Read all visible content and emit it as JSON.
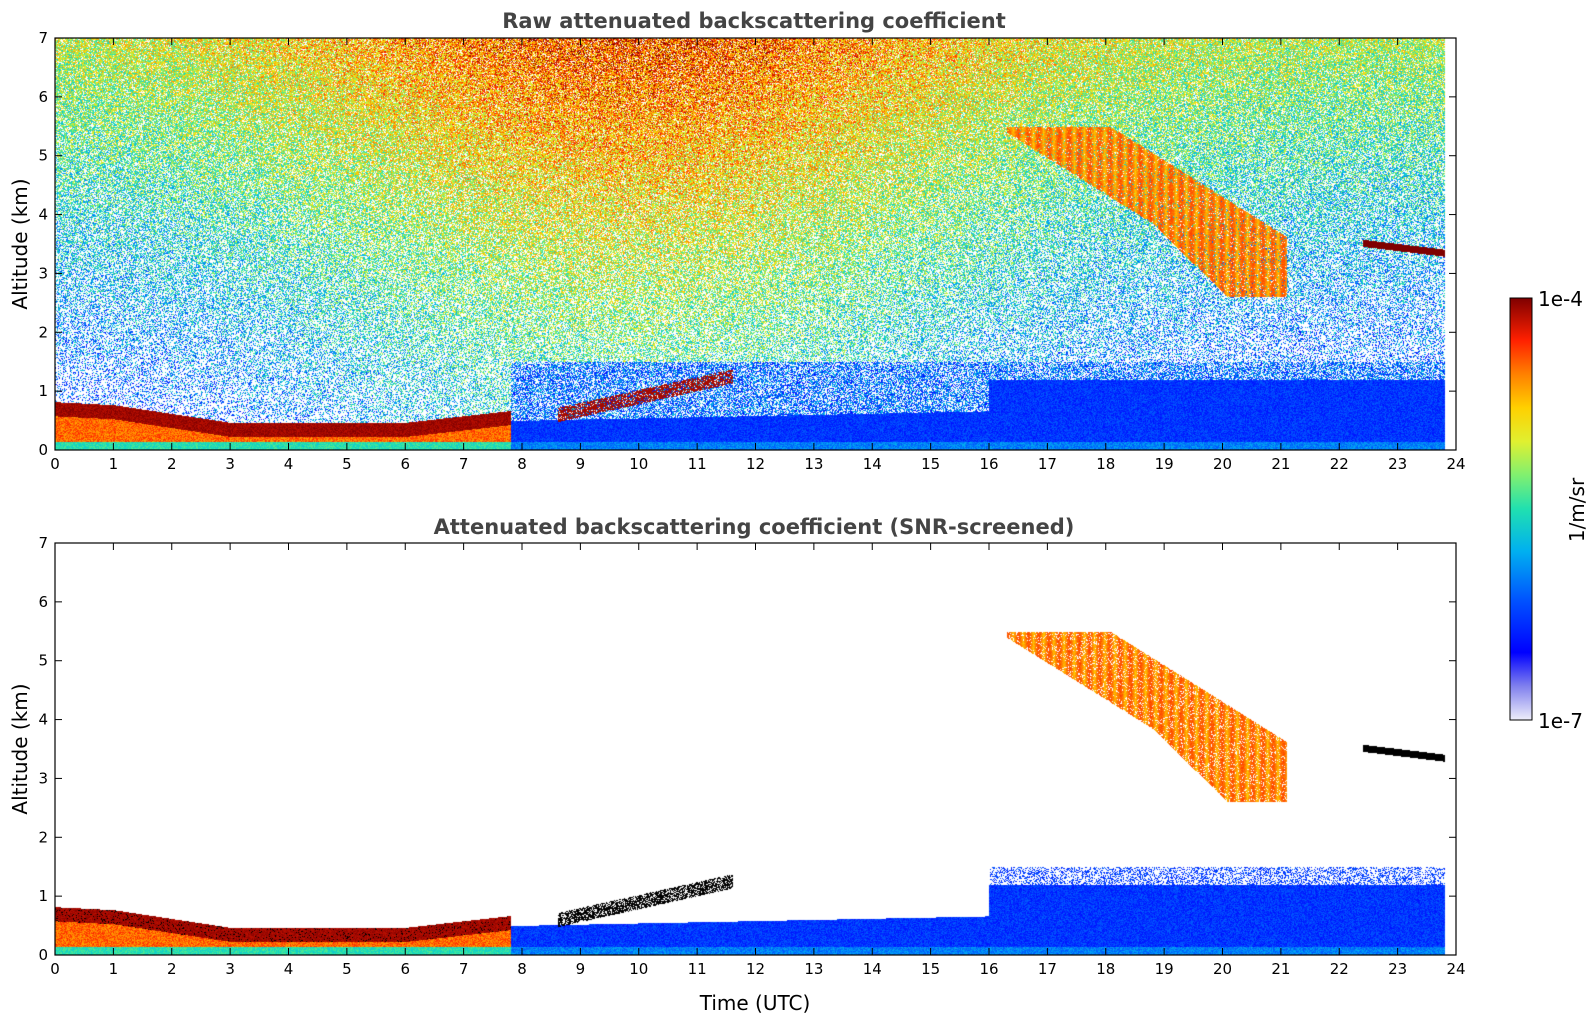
{
  "chart_data": [
    {
      "type": "heatmap",
      "title": "Raw attenuated backscattering coefficient",
      "xlabel": "",
      "ylabel": "Altitude (km)",
      "xlim": [
        0,
        24
      ],
      "ylim": [
        0,
        7
      ],
      "x_ticks": [
        "0",
        "1",
        "2",
        "3",
        "4",
        "5",
        "6",
        "7",
        "8",
        "9",
        "10",
        "11",
        "12",
        "13",
        "14",
        "15",
        "16",
        "17",
        "18",
        "19",
        "20",
        "21",
        "22",
        "23",
        "24"
      ],
      "y_ticks": [
        "0",
        "1",
        "2",
        "3",
        "4",
        "5",
        "6",
        "7"
      ],
      "data_end_time": 23.8,
      "features": [
        {
          "kind": "boundary_layer_aerosol",
          "time": [
            0,
            7.8
          ],
          "altitude_km": [
            0,
            0.7
          ],
          "level": "high"
        },
        {
          "kind": "low_cloud_broken",
          "time": [
            7.8,
            11.6
          ],
          "altitude_km": [
            0.5,
            1.4
          ],
          "level": "very_high"
        },
        {
          "kind": "mid_cloud",
          "time": [
            16.2,
            21.0
          ],
          "altitude_km": [
            2.6,
            5.4
          ],
          "level": "medium_high"
        },
        {
          "kind": "thin_cloud_layer",
          "time": [
            22.4,
            23.8
          ],
          "altitude_km": [
            3.3,
            3.6
          ],
          "level": "very_high"
        }
      ],
      "noise_level_high_altitude": "high"
    },
    {
      "type": "heatmap",
      "title": "Attenuated backscattering coefficient (SNR-screened)",
      "xlabel": "Time (UTC)",
      "ylabel": "Altitude (km)",
      "xlim": [
        0,
        24
      ],
      "ylim": [
        0,
        7
      ],
      "x_ticks": [
        "0",
        "1",
        "2",
        "3",
        "4",
        "5",
        "6",
        "7",
        "8",
        "9",
        "10",
        "11",
        "12",
        "13",
        "14",
        "15",
        "16",
        "17",
        "18",
        "19",
        "20",
        "21",
        "22",
        "23",
        "24"
      ],
      "y_ticks": [
        "0",
        "1",
        "2",
        "3",
        "4",
        "5",
        "6",
        "7"
      ],
      "data_end_time": 23.8,
      "features": [
        {
          "kind": "boundary_layer_aerosol",
          "time": [
            0,
            7.8
          ],
          "altitude_km": [
            0,
            0.7
          ],
          "level": "high"
        },
        {
          "kind": "low_cloud_broken",
          "time": [
            7.8,
            11.6
          ],
          "altitude_km": [
            0.5,
            1.4
          ],
          "level": "saturated"
        },
        {
          "kind": "mid_cloud",
          "time": [
            16.5,
            21.0
          ],
          "altitude_km": [
            2.6,
            5.4
          ],
          "level": "medium_high"
        },
        {
          "kind": "thin_cloud_layer",
          "time": [
            22.4,
            23.8
          ],
          "altitude_km": [
            3.3,
            3.6
          ],
          "level": "saturated"
        }
      ],
      "noise_level_high_altitude": "screened"
    }
  ],
  "colorbar": {
    "label": "1/m/sr",
    "max_label": "1e-4",
    "min_label": "1e-7",
    "scale": "log",
    "range": [
      1e-07,
      0.0001
    ],
    "colors": [
      "#e8e8f7",
      "#8a8ae8",
      "#0000ff",
      "#0060ff",
      "#00c0f0",
      "#20e0b0",
      "#7ff070",
      "#e0f030",
      "#ffd000",
      "#ff8000",
      "#ff2000",
      "#d00000",
      "#7f0000"
    ]
  }
}
